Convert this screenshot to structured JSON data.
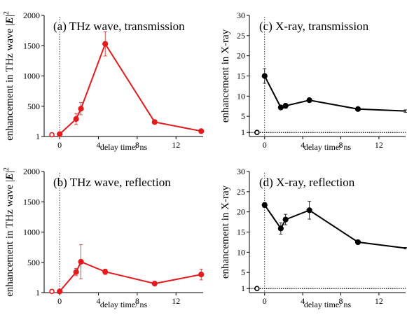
{
  "chart_data": [
    {
      "id": "a",
      "type": "line",
      "title": "(a) THz wave, transmission",
      "ylabel": "enhancement in THz wave |E|²",
      "ylabel_parts": [
        "enhancement in THz wave |",
        "E",
        "|",
        "2"
      ],
      "xlabel": "delay time/ ns",
      "xlim": [
        -1.6,
        14.8
      ],
      "ylim": [
        1,
        2000
      ],
      "xticks": [
        0,
        4,
        8,
        12
      ],
      "xtick_labels": [
        "0",
        "4",
        "8",
        "12"
      ],
      "yticks": [
        1,
        500,
        1000,
        1500,
        2000
      ],
      "ytick_labels": [
        "1",
        "500",
        "1000",
        "1500",
        "2000"
      ],
      "color": "#e41a1c",
      "zero_line": "vertical-dotted-at-0",
      "series": [
        {
          "x": [
            0.0,
            1.7,
            2.2,
            4.7,
            9.8,
            14.6
          ],
          "y": [
            40,
            290,
            460,
            1530,
            240,
            90
          ],
          "err": [
            30,
            90,
            100,
            200,
            15,
            10
          ]
        }
      ],
      "reference_point": {
        "x": -0.8,
        "y": 30
      }
    },
    {
      "id": "b",
      "type": "line",
      "title": "(b) THz wave, reflection",
      "ylabel": "enhancement in THz wave |E|²",
      "ylabel_parts": [
        "enhancement in THz wave |",
        "E",
        "|",
        "2"
      ],
      "xlabel": "delay time/ ns",
      "xlim": [
        -1.6,
        14.8
      ],
      "ylim": [
        1,
        2000
      ],
      "xticks": [
        0,
        4,
        8,
        12
      ],
      "xtick_labels": [
        "0",
        "4",
        "8",
        "12"
      ],
      "yticks": [
        1,
        500,
        1000,
        1500,
        2000
      ],
      "ytick_labels": [
        "1",
        "500",
        "1000",
        "1500",
        "2000"
      ],
      "color": "#e41a1c",
      "zero_line": "vertical-dotted-at-0",
      "series": [
        {
          "x": [
            0.0,
            1.7,
            2.2,
            4.7,
            9.8,
            14.6
          ],
          "y": [
            20,
            340,
            510,
            345,
            150,
            300
          ],
          "err": [
            20,
            60,
            280,
            45,
            20,
            90
          ]
        }
      ],
      "reference_point": {
        "x": -0.8,
        "y": 20
      }
    },
    {
      "id": "c",
      "type": "line",
      "title": "(c) X-ray, transmission",
      "ylabel": "enhancement in X-ray",
      "xlabel": "delay time/ ns",
      "xlim": [
        -1.6,
        14.8
      ],
      "ylim": [
        0,
        30
      ],
      "xticks": [
        0,
        4,
        8,
        12
      ],
      "xtick_labels": [
        "0",
        "4",
        "8",
        "12"
      ],
      "yticks": [
        1,
        5,
        10,
        15,
        20,
        25,
        30
      ],
      "ytick_labels": [
        "1",
        "5",
        "10",
        "15",
        "20",
        "25",
        "30"
      ],
      "color": "#000000",
      "zero_line": "vertical-dotted-at-0",
      "baseline": {
        "y": 1,
        "style": "dotted"
      },
      "series": [
        {
          "x": [
            0.0,
            1.7,
            2.2,
            4.7,
            9.8,
            14.8
          ],
          "y": [
            15.0,
            7.2,
            7.6,
            9.0,
            6.8,
            6.3
          ],
          "err": [
            1.8,
            0.5,
            0.6,
            0.4,
            0.3,
            0.3
          ]
        }
      ],
      "reference_point": {
        "x": -0.8,
        "y": 1
      }
    },
    {
      "id": "d",
      "type": "line",
      "title": "(d) X-ray, reflection",
      "ylabel": "enhancement in X-ray",
      "xlabel": "delay time/ ns",
      "xlim": [
        -1.6,
        14.8
      ],
      "ylim": [
        0,
        30
      ],
      "xticks": [
        0,
        4,
        8,
        12
      ],
      "xtick_labels": [
        "0",
        "4",
        "8",
        "12"
      ],
      "yticks": [
        1,
        5,
        10,
        15,
        20,
        25,
        30
      ],
      "ytick_labels": [
        "1",
        "5",
        "10",
        "15",
        "20",
        "25",
        "30"
      ],
      "color": "#000000",
      "zero_line": "vertical-dotted-at-0",
      "baseline": {
        "y": 1,
        "style": "dotted"
      },
      "series": [
        {
          "x": [
            0.0,
            1.7,
            2.2,
            4.7,
            9.8,
            14.8
          ],
          "y": [
            21.7,
            15.9,
            18.1,
            20.4,
            12.5,
            11.0
          ],
          "err": [
            0.6,
            1.4,
            1.3,
            2.2,
            0.2,
            0.2
          ]
        }
      ],
      "reference_point": {
        "x": -0.8,
        "y": 1
      }
    }
  ]
}
